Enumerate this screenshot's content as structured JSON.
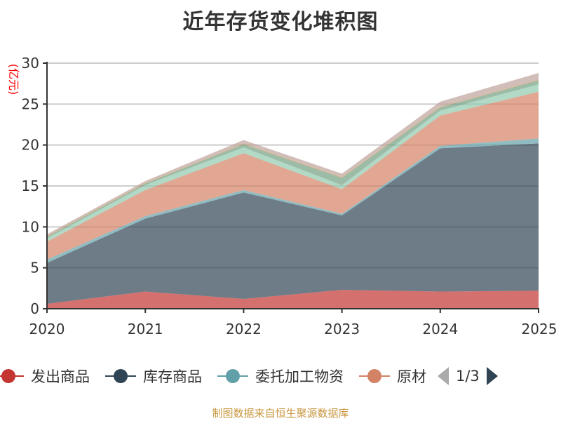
{
  "title": "近年存货变化堆积图",
  "source": "制图数据来自恒生聚源数据库",
  "legend": {
    "items": [
      {
        "label": "发出商品",
        "color": "#c23531"
      },
      {
        "label": "库存商品",
        "color": "#2f4554"
      },
      {
        "label": "委托加工物资",
        "color": "#61a0a8"
      },
      {
        "label": "原材",
        "color": "#d48265"
      }
    ],
    "page_text": "1/3"
  },
  "y_axis": {
    "name": "(亿元)",
    "name_color": "#ff0000",
    "ticks": [
      "0",
      "5",
      "10",
      "15",
      "20",
      "25",
      "30"
    ]
  },
  "x_axis": {
    "ticks": [
      "2020",
      "2021",
      "2022",
      "2023",
      "2024",
      "2025"
    ]
  },
  "chart_data": {
    "type": "area",
    "stacked": true,
    "title": "近年存货变化堆积图",
    "xlabel": "",
    "ylabel": "(亿元)",
    "ylim": [
      0,
      30
    ],
    "grid": true,
    "legend_position": "bottom",
    "categories": [
      "2020",
      "2021",
      "2022",
      "2023",
      "2024",
      "2025"
    ],
    "series": [
      {
        "name": "发出商品",
        "color": "#c23531",
        "values": [
          0.6,
          2.1,
          1.2,
          2.3,
          2.1,
          2.2
        ]
      },
      {
        "name": "库存商品",
        "color": "#2f4554",
        "values": [
          5.0,
          8.9,
          13.0,
          9.1,
          17.5,
          18.0
        ]
      },
      {
        "name": "委托加工物资",
        "color": "#61a0a8",
        "values": [
          0.4,
          0.3,
          0.3,
          0.2,
          0.3,
          0.6
        ]
      },
      {
        "name": "原材",
        "color": "#d48265",
        "values": [
          2.2,
          3.2,
          4.5,
          3.0,
          3.7,
          5.7
        ]
      },
      {
        "name": "(series 5, legend page 2)",
        "color": "#91c7ae",
        "values": [
          0.4,
          0.6,
          0.7,
          0.5,
          0.6,
          0.9
        ]
      },
      {
        "name": "(series 6, legend page 2)",
        "color": "#749f83",
        "values": [
          0.2,
          0.2,
          0.4,
          0.9,
          0.4,
          0.5
        ]
      },
      {
        "name": "(series 7, legend page 2)",
        "color": "#ca8622",
        "values": [
          0.05,
          0.05,
          0.05,
          0.05,
          0.05,
          0.05
        ]
      },
      {
        "name": "(series 8, legend page 3)",
        "color": "#bda29a",
        "values": [
          0.25,
          0.25,
          0.45,
          0.45,
          0.65,
          0.85
        ]
      }
    ],
    "totals": [
      9.1,
      15.6,
      20.6,
      16.5,
      25.3,
      28.8
    ]
  }
}
